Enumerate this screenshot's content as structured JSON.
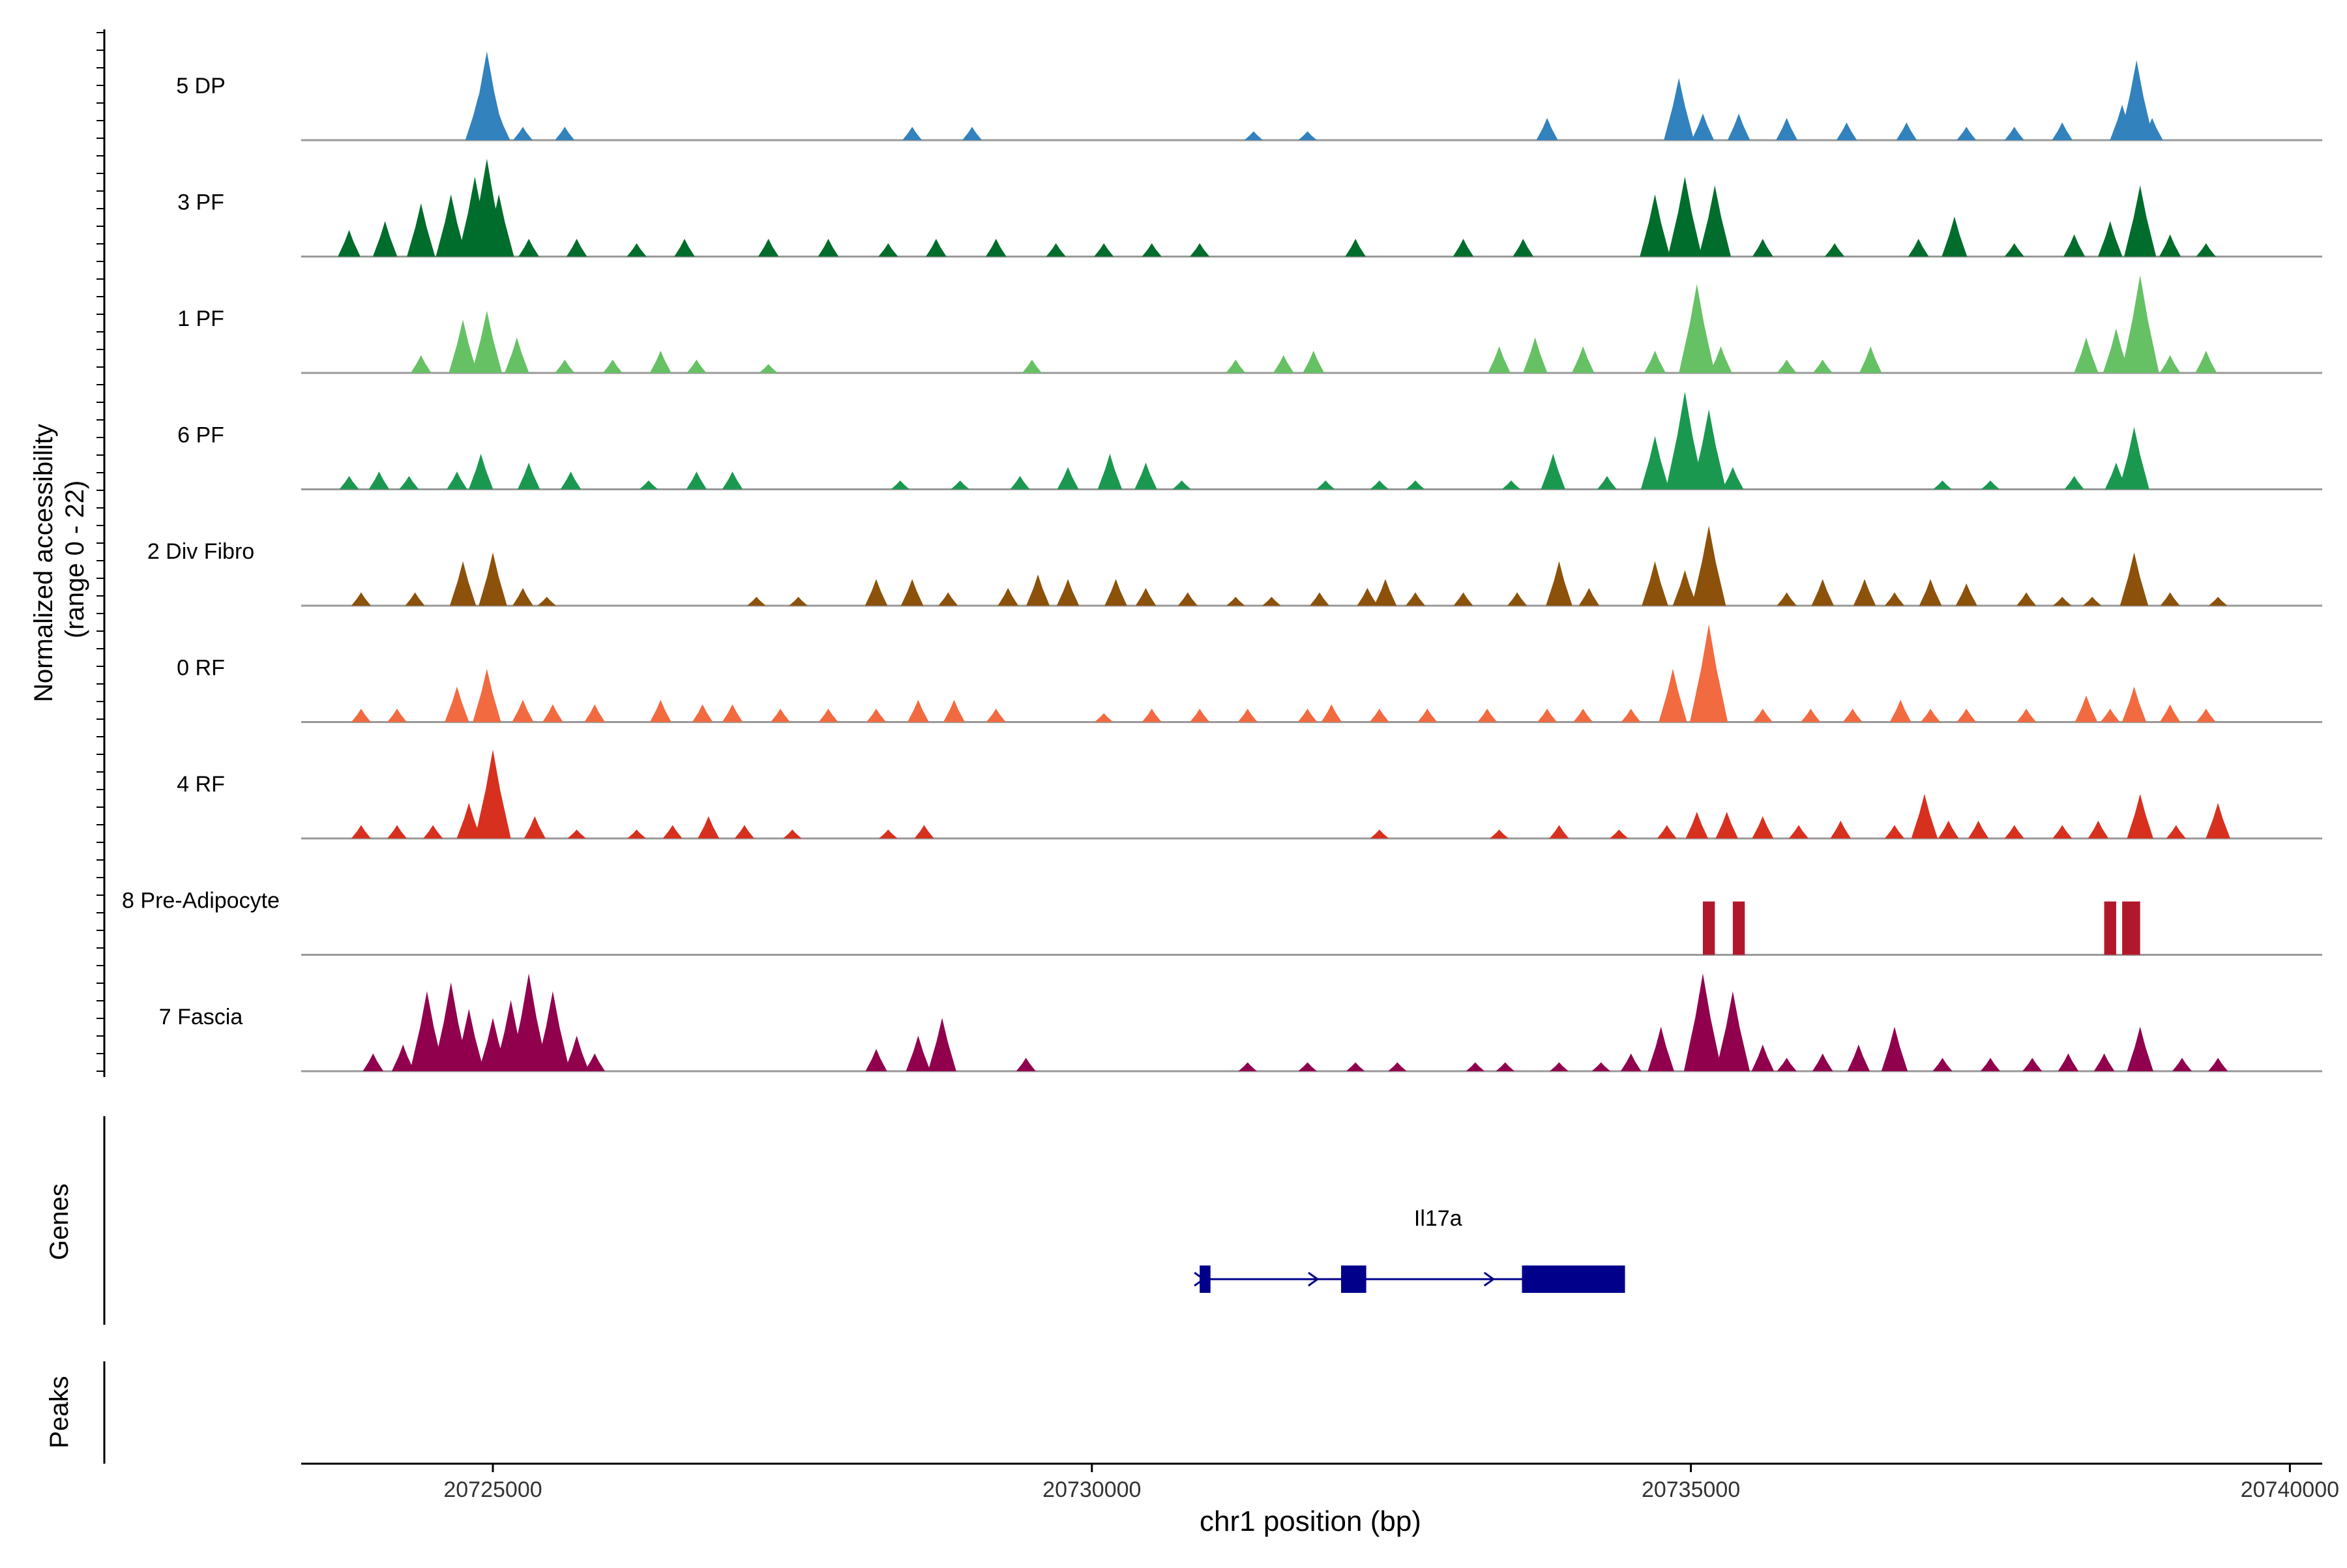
{
  "chart_data": {
    "type": "area",
    "title": "",
    "ylabel": "Normalized accessibility (range 0 - 22)",
    "ylabel_lines": [
      "Normalized accessibility",
      "(range 0 - 22)"
    ],
    "xlabel": "chr1 position (bp)",
    "region": {
      "chromosome": "chr1",
      "start": 20723400,
      "end": 20740270
    },
    "ylim": [
      0,
      22
    ],
    "x_ticks": [
      {
        "value": 20725000,
        "label": "20725000"
      },
      {
        "value": 20730000,
        "label": "20730000"
      },
      {
        "value": 20735000,
        "label": "20735000"
      },
      {
        "value": 20740000,
        "label": "20740000"
      }
    ],
    "coverage_tracks": [
      {
        "name": "5 DP",
        "color": "#3182BD",
        "peaks": [
          [
            20724880,
            10
          ],
          [
            20724950,
            20
          ],
          [
            20725050,
            6
          ],
          [
            20725250,
            3
          ],
          [
            20725600,
            3
          ],
          [
            20728500,
            3
          ],
          [
            20729000,
            3
          ],
          [
            20731350,
            2
          ],
          [
            20731800,
            2
          ],
          [
            20733800,
            5
          ],
          [
            20734900,
            14
          ],
          [
            20735100,
            6
          ],
          [
            20735400,
            6
          ],
          [
            20735800,
            5
          ],
          [
            20736300,
            4
          ],
          [
            20736800,
            4
          ],
          [
            20737300,
            3
          ],
          [
            20737700,
            3
          ],
          [
            20738100,
            4
          ],
          [
            20738600,
            8
          ],
          [
            20738720,
            18
          ],
          [
            20738850,
            5
          ]
        ]
      },
      {
        "name": "3 PF",
        "color": "#006D2C",
        "peaks": [
          [
            20723800,
            6
          ],
          [
            20724100,
            8
          ],
          [
            20724400,
            12
          ],
          [
            20724650,
            14
          ],
          [
            20724850,
            18
          ],
          [
            20724950,
            22
          ],
          [
            20725050,
            14
          ],
          [
            20725300,
            4
          ],
          [
            20725700,
            4
          ],
          [
            20726200,
            3
          ],
          [
            20726600,
            4
          ],
          [
            20727300,
            4
          ],
          [
            20727800,
            4
          ],
          [
            20728300,
            3
          ],
          [
            20728700,
            4
          ],
          [
            20729200,
            4
          ],
          [
            20729700,
            3
          ],
          [
            20730100,
            3
          ],
          [
            20730500,
            3
          ],
          [
            20730900,
            3
          ],
          [
            20732200,
            4
          ],
          [
            20733100,
            4
          ],
          [
            20733600,
            4
          ],
          [
            20734700,
            14
          ],
          [
            20734950,
            18
          ],
          [
            20735200,
            16
          ],
          [
            20735600,
            4
          ],
          [
            20736200,
            3
          ],
          [
            20736900,
            4
          ],
          [
            20737200,
            9
          ],
          [
            20737700,
            3
          ],
          [
            20738200,
            5
          ],
          [
            20738500,
            8
          ],
          [
            20738750,
            16
          ],
          [
            20739000,
            5
          ],
          [
            20739300,
            3
          ]
        ]
      },
      {
        "name": "1 PF",
        "color": "#66C164",
        "peaks": [
          [
            20724400,
            4
          ],
          [
            20724750,
            12
          ],
          [
            20724950,
            14
          ],
          [
            20725200,
            8
          ],
          [
            20725600,
            3
          ],
          [
            20726000,
            3
          ],
          [
            20726400,
            5
          ],
          [
            20726700,
            3
          ],
          [
            20727300,
            2
          ],
          [
            20729500,
            3
          ],
          [
            20731200,
            3
          ],
          [
            20731600,
            4
          ],
          [
            20731850,
            5
          ],
          [
            20733400,
            6
          ],
          [
            20733700,
            8
          ],
          [
            20734100,
            6
          ],
          [
            20734700,
            5
          ],
          [
            20735050,
            20
          ],
          [
            20735250,
            6
          ],
          [
            20735800,
            3
          ],
          [
            20736100,
            3
          ],
          [
            20736500,
            6
          ],
          [
            20738300,
            8
          ],
          [
            20738550,
            10
          ],
          [
            20738750,
            22
          ],
          [
            20739000,
            4
          ],
          [
            20739300,
            5
          ]
        ]
      },
      {
        "name": "6 PF",
        "color": "#1A9850",
        "peaks": [
          [
            20723800,
            3
          ],
          [
            20724050,
            4
          ],
          [
            20724300,
            3
          ],
          [
            20724700,
            4
          ],
          [
            20724900,
            8
          ],
          [
            20725300,
            6
          ],
          [
            20725650,
            4
          ],
          [
            20726300,
            2
          ],
          [
            20726700,
            4
          ],
          [
            20727000,
            4
          ],
          [
            20728400,
            2
          ],
          [
            20728900,
            2
          ],
          [
            20729400,
            3
          ],
          [
            20729800,
            5
          ],
          [
            20730150,
            8
          ],
          [
            20730450,
            6
          ],
          [
            20730750,
            2
          ],
          [
            20731950,
            2
          ],
          [
            20732400,
            2
          ],
          [
            20732700,
            2
          ],
          [
            20733500,
            2
          ],
          [
            20733850,
            8
          ],
          [
            20734300,
            3
          ],
          [
            20734700,
            12
          ],
          [
            20734950,
            22
          ],
          [
            20735150,
            18
          ],
          [
            20735350,
            5
          ],
          [
            20737100,
            2
          ],
          [
            20737500,
            2
          ],
          [
            20738200,
            3
          ],
          [
            20738550,
            6
          ],
          [
            20738700,
            14
          ]
        ]
      },
      {
        "name": "2 Div Fibro",
        "color": "#8C510A",
        "peaks": [
          [
            20723900,
            3
          ],
          [
            20724350,
            3
          ],
          [
            20724750,
            10
          ],
          [
            20725000,
            12
          ],
          [
            20725250,
            4
          ],
          [
            20725450,
            2
          ],
          [
            20727200,
            2
          ],
          [
            20727550,
            2
          ],
          [
            20728200,
            6
          ],
          [
            20728500,
            6
          ],
          [
            20728800,
            3
          ],
          [
            20729300,
            4
          ],
          [
            20729550,
            7
          ],
          [
            20729800,
            6
          ],
          [
            20730200,
            6
          ],
          [
            20730450,
            4
          ],
          [
            20730800,
            3
          ],
          [
            20731200,
            2
          ],
          [
            20731500,
            2
          ],
          [
            20731900,
            3
          ],
          [
            20732300,
            4
          ],
          [
            20732450,
            6
          ],
          [
            20732700,
            3
          ],
          [
            20733100,
            3
          ],
          [
            20733550,
            3
          ],
          [
            20733900,
            10
          ],
          [
            20734150,
            4
          ],
          [
            20734700,
            10
          ],
          [
            20734950,
            8
          ],
          [
            20735150,
            18
          ],
          [
            20735800,
            3
          ],
          [
            20736100,
            6
          ],
          [
            20736450,
            6
          ],
          [
            20736700,
            3
          ],
          [
            20737000,
            6
          ],
          [
            20737300,
            5
          ],
          [
            20737800,
            3
          ],
          [
            20738100,
            2
          ],
          [
            20738350,
            2
          ],
          [
            20738700,
            12
          ],
          [
            20739000,
            3
          ],
          [
            20739400,
            2
          ]
        ]
      },
      {
        "name": "0 RF",
        "color": "#F26A40",
        "peaks": [
          [
            20723900,
            3
          ],
          [
            20724200,
            3
          ],
          [
            20724700,
            8
          ],
          [
            20724950,
            12
          ],
          [
            20725250,
            5
          ],
          [
            20725500,
            4
          ],
          [
            20725850,
            4
          ],
          [
            20726400,
            5
          ],
          [
            20726750,
            4
          ],
          [
            20727000,
            4
          ],
          [
            20727400,
            3
          ],
          [
            20727800,
            3
          ],
          [
            20728200,
            3
          ],
          [
            20728550,
            5
          ],
          [
            20728850,
            5
          ],
          [
            20729200,
            3
          ],
          [
            20730100,
            2
          ],
          [
            20730500,
            3
          ],
          [
            20730900,
            3
          ],
          [
            20731300,
            3
          ],
          [
            20731800,
            3
          ],
          [
            20732000,
            4
          ],
          [
            20732400,
            3
          ],
          [
            20732800,
            3
          ],
          [
            20733300,
            3
          ],
          [
            20733800,
            3
          ],
          [
            20734100,
            3
          ],
          [
            20734500,
            3
          ],
          [
            20734850,
            12
          ],
          [
            20735100,
            10
          ],
          [
            20735150,
            22
          ],
          [
            20735600,
            3
          ],
          [
            20736000,
            3
          ],
          [
            20736350,
            3
          ],
          [
            20736750,
            5
          ],
          [
            20737000,
            3
          ],
          [
            20737300,
            3
          ],
          [
            20737800,
            3
          ],
          [
            20738300,
            6
          ],
          [
            20738500,
            3
          ],
          [
            20738700,
            8
          ],
          [
            20739000,
            4
          ],
          [
            20739300,
            3
          ]
        ]
      },
      {
        "name": "4 RF",
        "color": "#D7301F",
        "peaks": [
          [
            20723900,
            3
          ],
          [
            20724200,
            3
          ],
          [
            20724500,
            3
          ],
          [
            20724800,
            8
          ],
          [
            20725000,
            20
          ],
          [
            20725350,
            5
          ],
          [
            20725700,
            2
          ],
          [
            20726200,
            2
          ],
          [
            20726500,
            3
          ],
          [
            20726800,
            5
          ],
          [
            20727100,
            3
          ],
          [
            20727500,
            2
          ],
          [
            20728300,
            2
          ],
          [
            20728600,
            3
          ],
          [
            20732400,
            2
          ],
          [
            20733400,
            2
          ],
          [
            20733900,
            3
          ],
          [
            20734400,
            2
          ],
          [
            20734800,
            3
          ],
          [
            20735050,
            6
          ],
          [
            20735300,
            6
          ],
          [
            20735600,
            5
          ],
          [
            20735900,
            3
          ],
          [
            20736250,
            4
          ],
          [
            20736700,
            3
          ],
          [
            20736950,
            10
          ],
          [
            20737150,
            4
          ],
          [
            20737400,
            4
          ],
          [
            20737700,
            3
          ],
          [
            20738100,
            3
          ],
          [
            20738400,
            4
          ],
          [
            20738750,
            10
          ],
          [
            20739050,
            3
          ],
          [
            20739400,
            8
          ]
        ]
      },
      {
        "name": "8 Pre-Adipocyte",
        "color": "#B2182B",
        "blocks": [
          [
            20735100,
            20735200
          ],
          [
            20735350,
            20735450
          ],
          [
            20738450,
            20738550
          ],
          [
            20738600,
            20738750
          ]
        ],
        "block_height": 12
      },
      {
        "name": "7 Fascia",
        "color": "#91004D",
        "peaks": [
          [
            20724000,
            4
          ],
          [
            20724250,
            6
          ],
          [
            20724450,
            18
          ],
          [
            20724650,
            20
          ],
          [
            20724800,
            14
          ],
          [
            20725000,
            12
          ],
          [
            20725150,
            16
          ],
          [
            20725300,
            22
          ],
          [
            20725500,
            18
          ],
          [
            20725700,
            8
          ],
          [
            20725850,
            4
          ],
          [
            20728200,
            5
          ],
          [
            20728550,
            8
          ],
          [
            20728750,
            12
          ],
          [
            20729450,
            3
          ],
          [
            20731300,
            2
          ],
          [
            20731800,
            2
          ],
          [
            20732200,
            2
          ],
          [
            20732550,
            2
          ],
          [
            20733200,
            2
          ],
          [
            20733450,
            2
          ],
          [
            20733900,
            2
          ],
          [
            20734250,
            2
          ],
          [
            20734500,
            4
          ],
          [
            20734750,
            10
          ],
          [
            20735100,
            22
          ],
          [
            20735350,
            18
          ],
          [
            20735600,
            6
          ],
          [
            20735800,
            3
          ],
          [
            20736100,
            4
          ],
          [
            20736400,
            6
          ],
          [
            20736700,
            10
          ],
          [
            20737100,
            3
          ],
          [
            20737500,
            3
          ],
          [
            20737850,
            3
          ],
          [
            20738150,
            4
          ],
          [
            20738450,
            4
          ],
          [
            20738750,
            10
          ],
          [
            20739100,
            3
          ],
          [
            20739400,
            3
          ]
        ]
      }
    ],
    "gene_track": {
      "label": "Genes",
      "genes": [
        {
          "name": "Il17a",
          "color": "#00008B",
          "strand": "+",
          "start": 20730900,
          "end": 20734450,
          "exons": [
            [
              20730900,
              20730990
            ],
            [
              20732080,
              20732290
            ],
            [
              20733590,
              20734450
            ]
          ]
        }
      ]
    },
    "peaks_track": {
      "label": "Peaks",
      "items": []
    }
  }
}
